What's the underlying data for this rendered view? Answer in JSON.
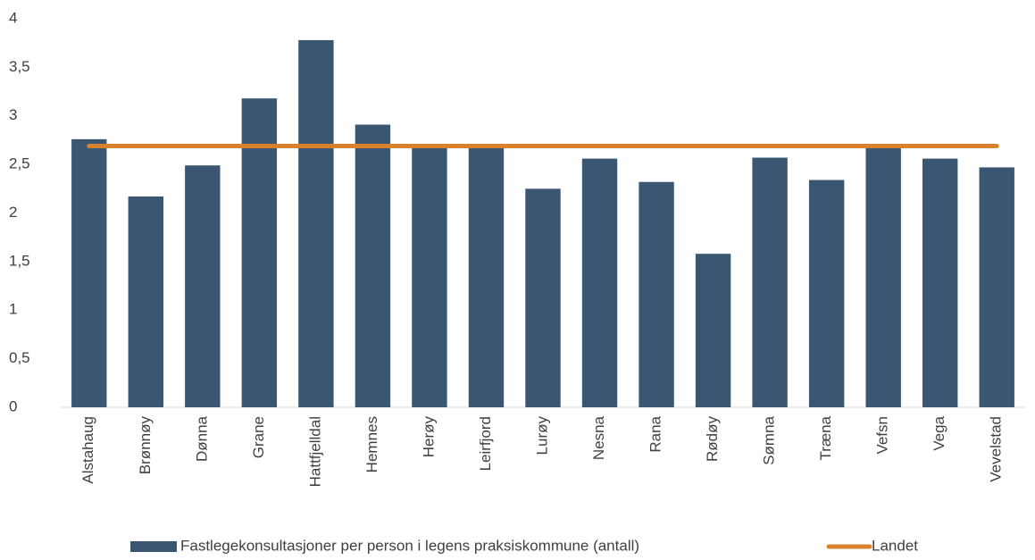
{
  "chart_data": {
    "type": "bar",
    "categories": [
      "Alstahaug",
      "Brønnøy",
      "Dønna",
      "Grane",
      "Hattfjelldal",
      "Hemnes",
      "Herøy",
      "Leirfjord",
      "Lurøy",
      "Nesna",
      "Rana",
      "Rødøy",
      "Sømna",
      "Træna",
      "Vefsn",
      "Vega",
      "Vevelstad"
    ],
    "series": [
      {
        "name": "Fastlegekonsultasjoner per person i legens praksiskommune  (antall)",
        "type": "bar",
        "color": "#3b5672",
        "values": [
          2.76,
          2.17,
          2.49,
          3.18,
          3.78,
          2.91,
          2.7,
          2.68,
          2.25,
          2.56,
          2.32,
          1.58,
          2.57,
          2.34,
          2.71,
          2.56,
          2.47
        ]
      },
      {
        "name": "Landet",
        "type": "line",
        "color": "#d9822b",
        "values": [
          2.69,
          2.69,
          2.69,
          2.69,
          2.69,
          2.69,
          2.69,
          2.69,
          2.69,
          2.69,
          2.69,
          2.69,
          2.69,
          2.69,
          2.69,
          2.69,
          2.69
        ]
      }
    ],
    "ylim": [
      0,
      4
    ],
    "yticks": [
      0,
      {
        "value": 0.5,
        "label": "0,5"
      },
      1,
      {
        "value": 1.5,
        "label": "1,5"
      },
      2,
      {
        "value": 2.5,
        "label": "2,5"
      },
      3,
      {
        "value": 3.5,
        "label": "3,5"
      },
      4
    ],
    "grid": false,
    "legend": "bottom"
  }
}
